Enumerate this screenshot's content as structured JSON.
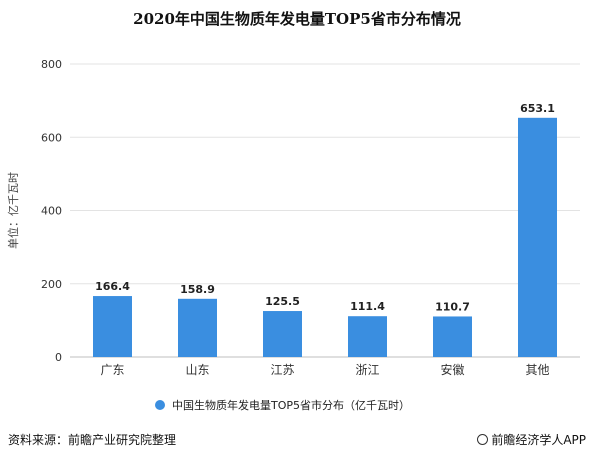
{
  "title": "2020年中国生物质年发电量TOP5省市分布情况",
  "source_text": "资料来源：前瞻产业研究院整理",
  "brand_text": "前瞻经济学人APP",
  "chart_data": {
    "type": "bar",
    "title": "2020年中国生物质年发电量TOP5省市分布情况",
    "categories": [
      "广东",
      "山东",
      "江苏",
      "浙江",
      "安徽",
      "其他"
    ],
    "series": [
      {
        "name": "中国生物质年发电量TOP5省市分布（亿千瓦时）",
        "values": [
          166.4,
          158.9,
          125.5,
          111.4,
          110.7,
          653.1
        ]
      }
    ],
    "data_labels": [
      "166.4",
      "158.9",
      "125.5",
      "111.4",
      "110.7",
      "653.1"
    ],
    "ylabel": "单位：亿千瓦时",
    "ylim": [
      0,
      800
    ],
    "yticks": [
      0,
      200,
      400,
      600,
      800
    ],
    "grid": true,
    "legend": "bottom",
    "bar_color": "#3a8ee0"
  }
}
